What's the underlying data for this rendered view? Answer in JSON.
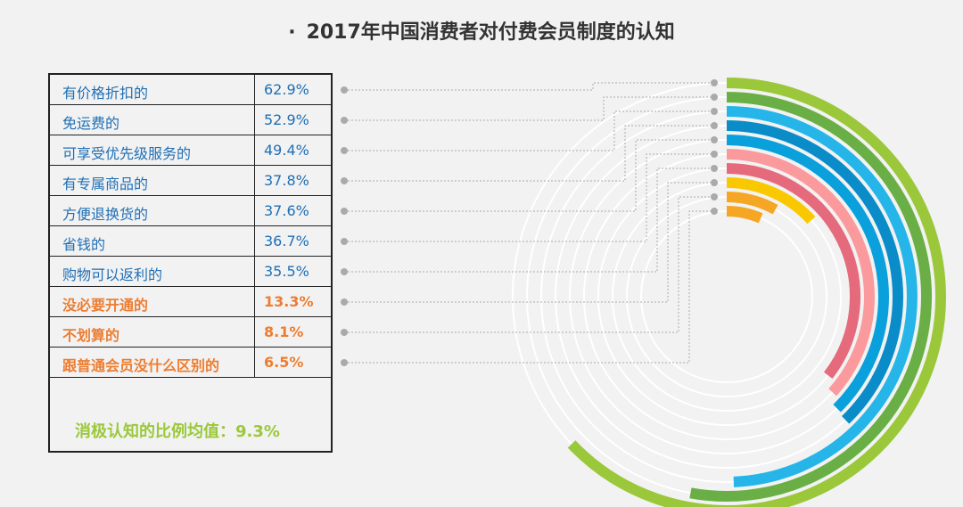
{
  "title": "2017年中国消费者对付费会员制度的认知",
  "title_bullet": "·",
  "chart_data": {
    "type": "radial-bar",
    "title": "2017年中国消费者对付费会员制度的认知",
    "max_value": 100,
    "unit": "%",
    "items": [
      {
        "label": "有价格折扣的",
        "value": 62.9,
        "value_text": "62.9%",
        "color": "#9bc83b",
        "group": "positive"
      },
      {
        "label": "免运费的",
        "value": 52.9,
        "value_text": "52.9%",
        "color": "#6aaf46",
        "group": "positive"
      },
      {
        "label": "可享受优先级服务的",
        "value": 49.4,
        "value_text": "49.4%",
        "color": "#26b5e8",
        "group": "positive"
      },
      {
        "label": "有专属商品的",
        "value": 37.8,
        "value_text": "37.8%",
        "color": "#0a8cc9",
        "group": "positive"
      },
      {
        "label": "方便退换货的",
        "value": 37.6,
        "value_text": "37.6%",
        "color": "#0aa0dc",
        "group": "positive"
      },
      {
        "label": "省钱的",
        "value": 36.7,
        "value_text": "36.7%",
        "color": "#fa9a9c",
        "group": "positive"
      },
      {
        "label": "购物可以返利的",
        "value": 35.5,
        "value_text": "35.5%",
        "color": "#e56a7c",
        "group": "positive"
      },
      {
        "label": "没必要开通的",
        "value": 13.3,
        "value_text": "13.3%",
        "color": "#fac800",
        "group": "negative"
      },
      {
        "label": "不划算的",
        "value": 8.1,
        "value_text": "8.1%",
        "color": "#f5a623",
        "group": "negative"
      },
      {
        "label": "跟普通会员没什么区别的",
        "value": 6.5,
        "value_text": "6.5%",
        "color": "#f5a623",
        "group": "negative"
      }
    ],
    "negative_average_label": "消极认知的比例均值：9.3%",
    "negative_average_value": 9.3
  },
  "colors": {
    "positive_text": "#1f6fb5",
    "negative_text": "#ed7d31",
    "average_text": "#9bc83b",
    "track": "#ffffff",
    "leader": "#aaaaaa"
  }
}
